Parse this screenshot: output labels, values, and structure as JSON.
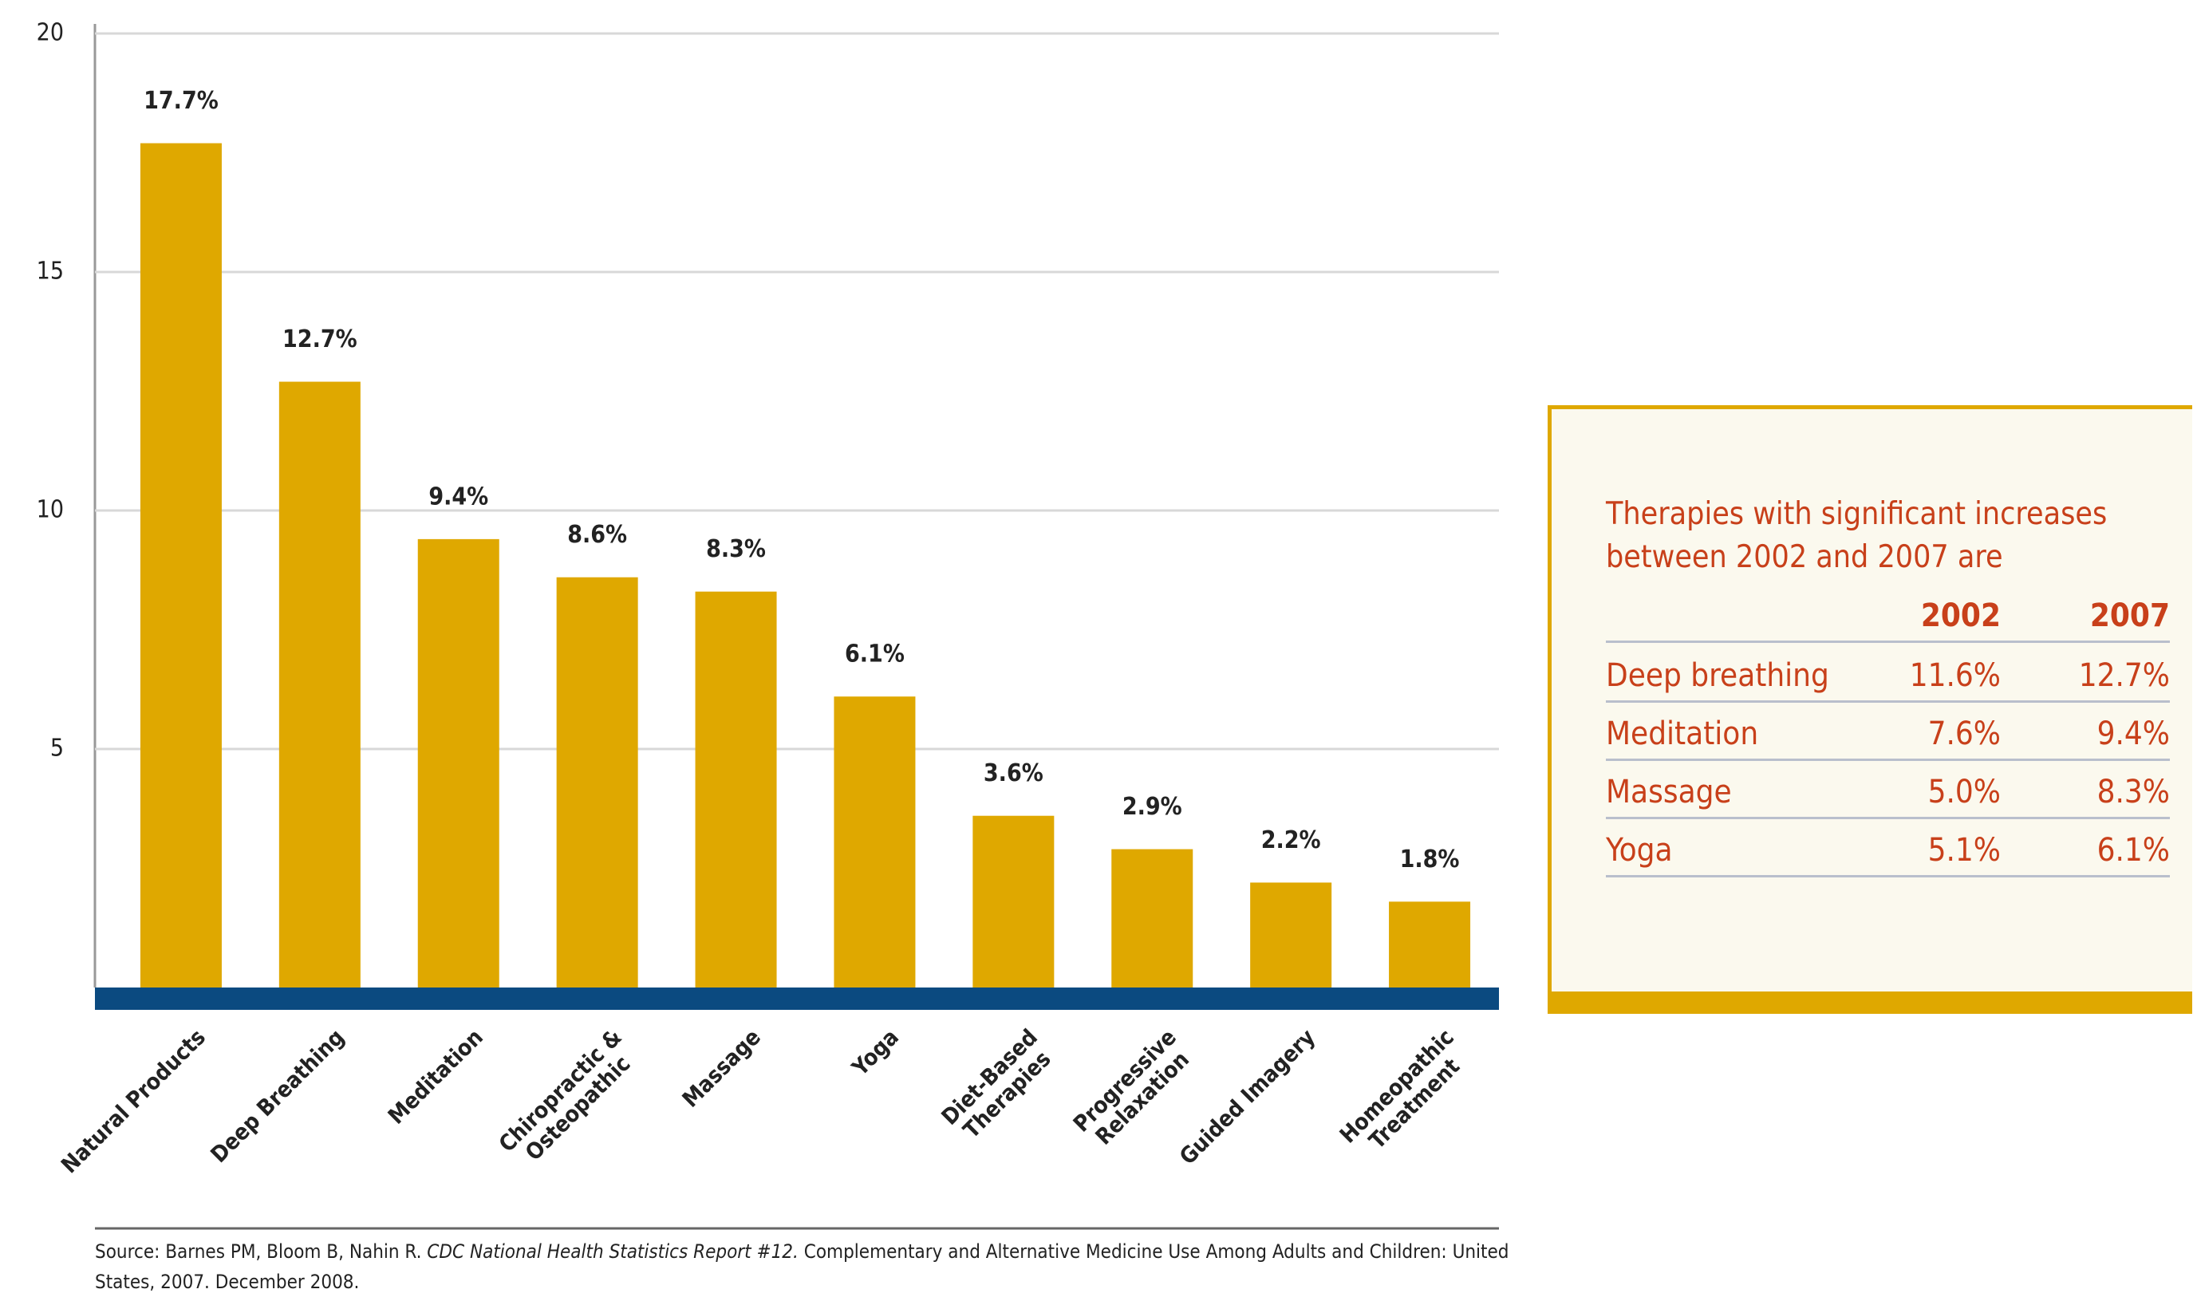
{
  "chart_data": {
    "type": "bar",
    "categories": [
      "Natural Products",
      "Deep Breathing",
      "Meditation",
      "Chiropractic &\nOsteopathic",
      "Massage",
      "Yoga",
      "Diet-Based\nTherapies",
      "Progressive\nRelaxation",
      "Guided Imagery",
      "Homeopathic\nTreatment"
    ],
    "values": [
      17.7,
      12.7,
      9.4,
      8.6,
      8.3,
      6.1,
      3.6,
      2.9,
      2.2,
      1.8
    ],
    "value_labels": [
      "17.7%",
      "12.7%",
      "9.4%",
      "8.6%",
      "8.3%",
      "6.1%",
      "3.6%",
      "2.9%",
      "2.2%",
      "1.8%"
    ],
    "color": "#dfa800",
    "ylim": [
      0,
      20
    ],
    "yticks": [
      5,
      10,
      15,
      20
    ],
    "grid": true,
    "source": {
      "prefix": "Source: Barnes PM, Bloom B, Nahin R. ",
      "italic": "CDC National Health Statistics Report #12.",
      "suffix": " Complementary and Alternative Medicine Use Among Adults and Children: United States, 2007. December 2008."
    }
  },
  "table": {
    "title": "Therapies with significant increases between 2002 and 2007 are",
    "columns": [
      "2002",
      "2007"
    ],
    "rows": [
      [
        "Deep breathing",
        "11.6%",
        "12.7%"
      ],
      [
        "Meditation",
        "7.6%",
        "9.4%"
      ],
      [
        "Massage",
        "5.0%",
        "8.3%"
      ],
      [
        "Yoga",
        "5.1%",
        "6.1%"
      ]
    ]
  }
}
